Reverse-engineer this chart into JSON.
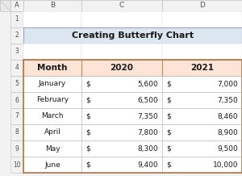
{
  "title": "Creating Butterfly Chart",
  "title_bg": "#dce6f1",
  "header_bg": "#fce4d6",
  "col_headers": [
    "Month",
    "2020",
    "2021"
  ],
  "rows": [
    [
      "January",
      "$",
      "5,600",
      "$",
      "7,000"
    ],
    [
      "February",
      "$",
      "6,500",
      "$",
      "7,350"
    ],
    [
      "March",
      "$",
      "7,350",
      "$",
      "8,460"
    ],
    [
      "April",
      "$",
      "7,800",
      "$",
      "8,900"
    ],
    [
      "May",
      "$",
      "8,300",
      "$",
      "9,500"
    ],
    [
      "June",
      "$",
      "9,400",
      "$",
      "10,000"
    ]
  ],
  "col_letters": [
    "A",
    "B",
    "C",
    "D"
  ],
  "row_numbers": [
    "1",
    "2",
    "3",
    "4",
    "5",
    "6",
    "7",
    "8",
    "9",
    "10"
  ],
  "excel_bg": "#f2f2f2",
  "cell_bg": "#ffffff",
  "corner_bg": "#e8e8e8",
  "row_num_bg": "#f2f2f2",
  "col_letter_bg": "#f2f2f2",
  "header_edge": "#c0c0c0",
  "table_edge": "#c09060",
  "title_edge": "#a0a8c0"
}
